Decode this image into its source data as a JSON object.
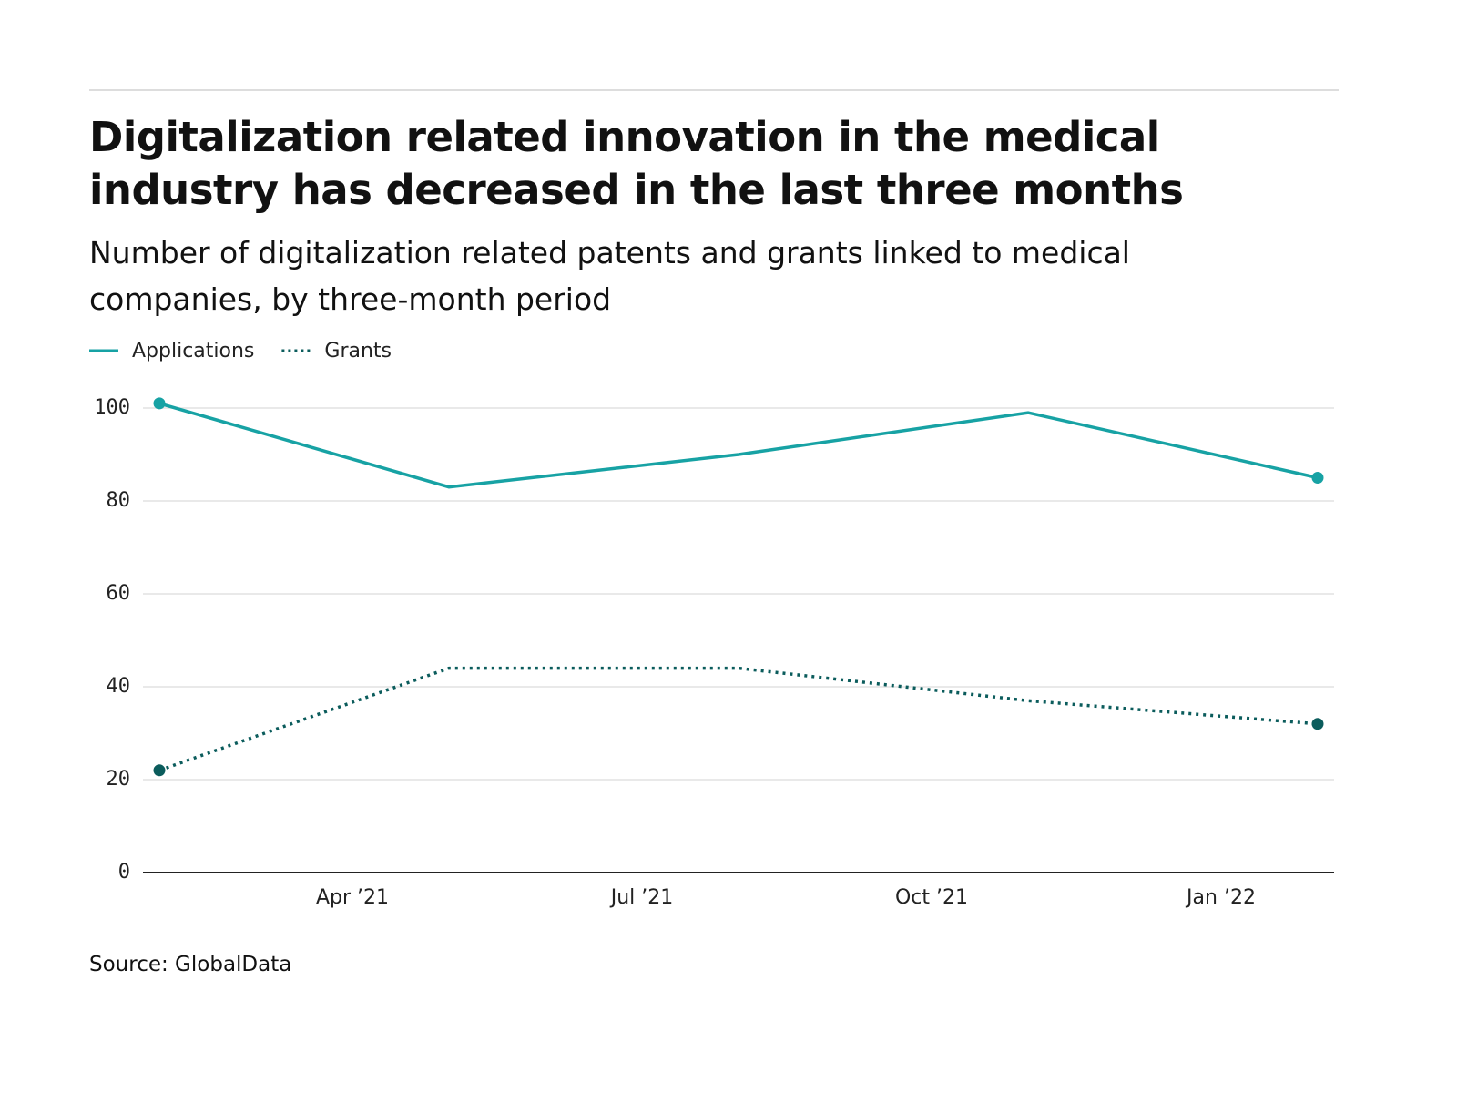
{
  "chart_data": {
    "type": "line",
    "title": "Digitalization related innovation in the medical industry has decreased in the last three months",
    "subtitle": "Number of digitalization related patents and grants linked to medical companies, by three-month period",
    "x": [
      "2021-02",
      "2021-05",
      "2021-08",
      "2021-11",
      "2022-02"
    ],
    "series": [
      {
        "name": "Applications",
        "color": "#17a2a4",
        "style": "solid",
        "values": [
          101,
          83,
          90,
          99,
          85
        ]
      },
      {
        "name": "Grants",
        "color": "#0b5c5c",
        "style": "dotted",
        "values": [
          22,
          44,
          44,
          37,
          32
        ]
      }
    ],
    "xlim": [
      "2021-02",
      "2022-02"
    ],
    "xticks": [
      {
        "value": "2021-04",
        "label": "Apr ’21"
      },
      {
        "value": "2021-07",
        "label": "Jul ’21"
      },
      {
        "value": "2021-10",
        "label": "Oct ’21"
      },
      {
        "value": "2022-01",
        "label": "Jan ’22"
      }
    ],
    "ylim": [
      0,
      100
    ],
    "yticks": [
      0,
      20,
      40,
      60,
      80,
      100
    ],
    "grid": true,
    "legend": "top-left",
    "note": "Source: GlobalData"
  }
}
